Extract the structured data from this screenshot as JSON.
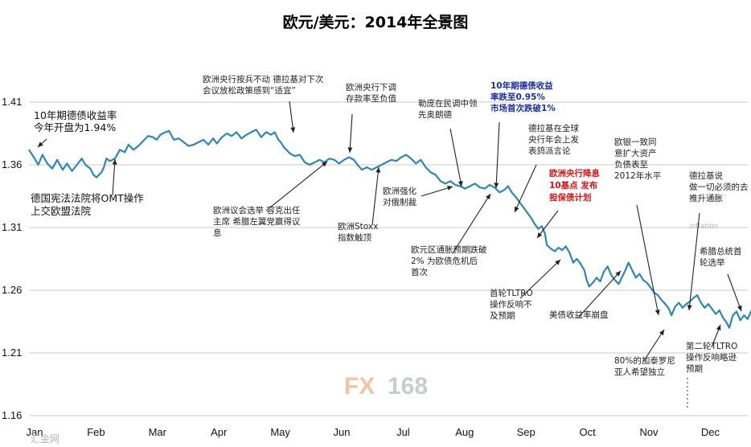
{
  "chart_data": {
    "type": "line",
    "title": "欧元/美元：2014年全景图",
    "x_labels": [
      "Jan",
      "Feb",
      "Mar",
      "Apr",
      "May",
      "Jun",
      "Jul",
      "Aug",
      "Sep",
      "Oct",
      "Nov",
      "Dec"
    ],
    "y_ticks": [
      "1.41",
      "1.36",
      "1.31",
      "1.26",
      "1.21",
      "1.16"
    ],
    "ylim": [
      1.16,
      1.41
    ],
    "xlim": [
      0,
      12
    ],
    "grid": "horizontal",
    "color": "#2f86b5",
    "series": [
      {
        "values": [
          [
            0.0,
            1.372
          ],
          [
            0.08,
            1.366
          ],
          [
            0.15,
            1.36
          ],
          [
            0.22,
            1.368
          ],
          [
            0.3,
            1.361
          ],
          [
            0.38,
            1.357
          ],
          [
            0.46,
            1.364
          ],
          [
            0.55,
            1.356
          ],
          [
            0.62,
            1.361
          ],
          [
            0.7,
            1.355
          ],
          [
            0.78,
            1.36
          ],
          [
            0.86,
            1.365
          ],
          [
            0.92,
            1.36
          ],
          [
            1.0,
            1.357
          ],
          [
            1.05,
            1.352
          ],
          [
            1.1,
            1.35
          ],
          [
            1.18,
            1.354
          ],
          [
            1.22,
            1.358
          ],
          [
            1.26,
            1.365
          ],
          [
            1.32,
            1.363
          ],
          [
            1.4,
            1.365
          ],
          [
            1.48,
            1.372
          ],
          [
            1.56,
            1.37
          ],
          [
            1.62,
            1.376
          ],
          [
            1.7,
            1.372
          ],
          [
            1.78,
            1.375
          ],
          [
            1.86,
            1.379
          ],
          [
            1.94,
            1.383
          ],
          [
            2.02,
            1.382
          ],
          [
            2.08,
            1.38
          ],
          [
            2.14,
            1.384
          ],
          [
            2.22,
            1.386
          ],
          [
            2.28,
            1.387
          ],
          [
            2.36,
            1.38
          ],
          [
            2.44,
            1.381
          ],
          [
            2.52,
            1.378
          ],
          [
            2.6,
            1.375
          ],
          [
            2.68,
            1.376
          ],
          [
            2.76,
            1.378
          ],
          [
            2.84,
            1.38
          ],
          [
            2.92,
            1.376
          ],
          [
            3.0,
            1.381
          ],
          [
            3.06,
            1.377
          ],
          [
            3.14,
            1.382
          ],
          [
            3.22,
            1.385
          ],
          [
            3.3,
            1.383
          ],
          [
            3.38,
            1.386
          ],
          [
            3.46,
            1.381
          ],
          [
            3.54,
            1.384
          ],
          [
            3.62,
            1.386
          ],
          [
            3.7,
            1.388
          ],
          [
            3.78,
            1.382
          ],
          [
            3.86,
            1.386
          ],
          [
            3.94,
            1.384
          ],
          [
            4.0,
            1.386
          ],
          [
            4.06,
            1.38
          ],
          [
            4.1,
            1.378
          ],
          [
            4.15,
            1.374
          ],
          [
            4.25,
            1.369
          ],
          [
            4.33,
            1.367
          ],
          [
            4.41,
            1.368
          ],
          [
            4.49,
            1.362
          ],
          [
            4.57,
            1.36
          ],
          [
            4.65,
            1.362
          ],
          [
            4.73,
            1.364
          ],
          [
            4.81,
            1.362
          ],
          [
            4.89,
            1.365
          ],
          [
            4.97,
            1.364
          ],
          [
            5.05,
            1.361
          ],
          [
            5.13,
            1.364
          ],
          [
            5.21,
            1.366
          ],
          [
            5.29,
            1.364
          ],
          [
            5.35,
            1.36
          ],
          [
            5.42,
            1.356
          ],
          [
            5.5,
            1.358
          ],
          [
            5.58,
            1.356
          ],
          [
            5.66,
            1.358
          ],
          [
            5.74,
            1.36
          ],
          [
            5.82,
            1.362
          ],
          [
            5.9,
            1.364
          ],
          [
            5.98,
            1.363
          ],
          [
            6.06,
            1.366
          ],
          [
            6.14,
            1.368
          ],
          [
            6.22,
            1.365
          ],
          [
            6.3,
            1.361
          ],
          [
            6.38,
            1.364
          ],
          [
            6.46,
            1.358
          ],
          [
            6.54,
            1.354
          ],
          [
            6.62,
            1.352
          ],
          [
            6.7,
            1.347
          ],
          [
            6.78,
            1.345
          ],
          [
            6.86,
            1.347
          ],
          [
            6.94,
            1.344
          ],
          [
            7.02,
            1.343
          ],
          [
            7.1,
            1.341
          ],
          [
            7.18,
            1.343
          ],
          [
            7.26,
            1.345
          ],
          [
            7.34,
            1.342
          ],
          [
            7.42,
            1.341
          ],
          [
            7.5,
            1.344
          ],
          [
            7.58,
            1.342
          ],
          [
            7.66,
            1.338
          ],
          [
            7.74,
            1.34
          ],
          [
            7.8,
            1.343
          ],
          [
            7.86,
            1.338
          ],
          [
            7.93,
            1.334
          ],
          [
            7.99,
            1.33
          ],
          [
            8.05,
            1.326
          ],
          [
            8.11,
            1.322
          ],
          [
            8.17,
            1.318
          ],
          [
            8.23,
            1.313
          ],
          [
            8.29,
            1.309
          ],
          [
            8.35,
            1.311
          ],
          [
            8.4,
            1.305
          ],
          [
            8.43,
            1.296
          ],
          [
            8.5,
            1.293
          ],
          [
            8.56,
            1.291
          ],
          [
            8.62,
            1.294
          ],
          [
            8.68,
            1.292
          ],
          [
            8.74,
            1.295
          ],
          [
            8.8,
            1.29
          ],
          [
            8.86,
            1.282
          ],
          [
            8.92,
            1.285
          ],
          [
            8.98,
            1.281
          ],
          [
            9.04,
            1.276
          ],
          [
            9.08,
            1.268
          ],
          [
            9.12,
            1.263
          ],
          [
            9.18,
            1.266
          ],
          [
            9.24,
            1.27
          ],
          [
            9.3,
            1.267
          ],
          [
            9.36,
            1.275
          ],
          [
            9.42,
            1.279
          ],
          [
            9.48,
            1.272
          ],
          [
            9.54,
            1.268
          ],
          [
            9.6,
            1.265
          ],
          [
            9.64,
            1.269
          ],
          [
            9.7,
            1.275
          ],
          [
            9.76,
            1.282
          ],
          [
            9.82,
            1.276
          ],
          [
            9.88,
            1.27
          ],
          [
            9.94,
            1.273
          ],
          [
            10.0,
            1.268
          ],
          [
            10.06,
            1.266
          ],
          [
            10.12,
            1.262
          ],
          [
            10.18,
            1.258
          ],
          [
            10.24,
            1.256
          ],
          [
            10.3,
            1.252
          ],
          [
            10.36,
            1.249
          ],
          [
            10.42,
            1.245
          ],
          [
            10.46,
            1.24
          ],
          [
            10.52,
            1.247
          ],
          [
            10.58,
            1.25
          ],
          [
            10.64,
            1.246
          ],
          [
            10.7,
            1.249
          ],
          [
            10.76,
            1.251
          ],
          [
            10.82,
            1.254
          ],
          [
            10.88,
            1.256
          ],
          [
            10.94,
            1.25
          ],
          [
            11.0,
            1.246
          ],
          [
            11.06,
            1.249
          ],
          [
            11.12,
            1.245
          ],
          [
            11.18,
            1.241
          ],
          [
            11.24,
            1.244
          ],
          [
            11.3,
            1.238
          ],
          [
            11.36,
            1.234
          ],
          [
            11.4,
            1.23
          ],
          [
            11.46,
            1.24
          ],
          [
            11.52,
            1.243
          ],
          [
            11.58,
            1.236
          ],
          [
            11.64,
            1.24
          ],
          [
            11.7,
            1.237
          ],
          [
            11.76,
            1.244
          ],
          [
            11.82,
            1.248
          ],
          [
            11.88,
            1.246
          ],
          [
            11.94,
            1.247
          ],
          [
            11.97,
            1.24
          ]
        ]
      }
    ],
    "annotations": [
      {
        "lines": [
          "10年期德债收益率",
          "今年开盘为1.94%"
        ],
        "style": "large"
      },
      {
        "lines": [
          "德国宪法法院将OMT操作",
          "上交欧盟法院"
        ],
        "style": "large"
      },
      {
        "lines": [
          "欧洲央行按兵不动 德拉基对下次",
          "会议放松政策感到“适宜”"
        ],
        "style": "normal"
      },
      {
        "lines": [
          "欧洲央行下调",
          "存款率至负值"
        ],
        "style": "normal"
      },
      {
        "lines": [
          "10年期德债收益",
          "率跌至0.95%",
          "市场首次跌破1%"
        ],
        "style": "blue"
      },
      {
        "lines": [
          "勒庞在民调中领",
          "先奥朗德"
        ],
        "style": "normal"
      },
      {
        "lines": [
          "德拉基在全球",
          "央行年会上发",
          "表鸽派言论"
        ],
        "style": "normal"
      },
      {
        "lines": [
          "欧洲央行降息",
          "10基点 发布",
          "担保债计划"
        ],
        "style": "red"
      },
      {
        "lines": [
          "欧银一致同",
          "意扩大资产",
          "负债表至",
          "2012年水平"
        ],
        "style": "normal"
      },
      {
        "lines": [
          "德拉基说",
          "做一切必须的去",
          "推升通胀"
        ],
        "style": "normal"
      },
      {
        "lines": [
          "欧洲强化",
          "对俄制裁"
        ],
        "style": "normal"
      },
      {
        "lines": [
          "欧洲议会选举 容克出任",
          "主席 希腊左翼党赢得议",
          "息"
        ],
        "style": "normal"
      },
      {
        "lines": [
          "欧洲Stoxx",
          "指数触顶"
        ],
        "style": "normal"
      },
      {
        "lines": [
          "欧元区通胀预期跌破",
          "2% 为欧债危机后",
          "首次"
        ],
        "style": "normal"
      },
      {
        "lines": [
          "首轮TLTRO",
          "操作反响不",
          "及预期"
        ],
        "style": "normal"
      },
      {
        "lines": [
          "美债收益率崩盘"
        ],
        "style": "normal"
      },
      {
        "lines": [
          "80%的加泰罗尼",
          "亚人希望独立"
        ],
        "style": "normal"
      },
      {
        "lines": [
          "第二轮TLTRO",
          "操作反响略逊",
          "预期"
        ],
        "style": "normal"
      },
      {
        "lines": [
          "希腊总统首",
          "轮选举"
        ],
        "style": "normal"
      }
    ]
  },
  "watermark": {
    "brand_a": "FX",
    "brand_b": "168",
    "corner": "汇金网",
    "faint": "inflation"
  }
}
